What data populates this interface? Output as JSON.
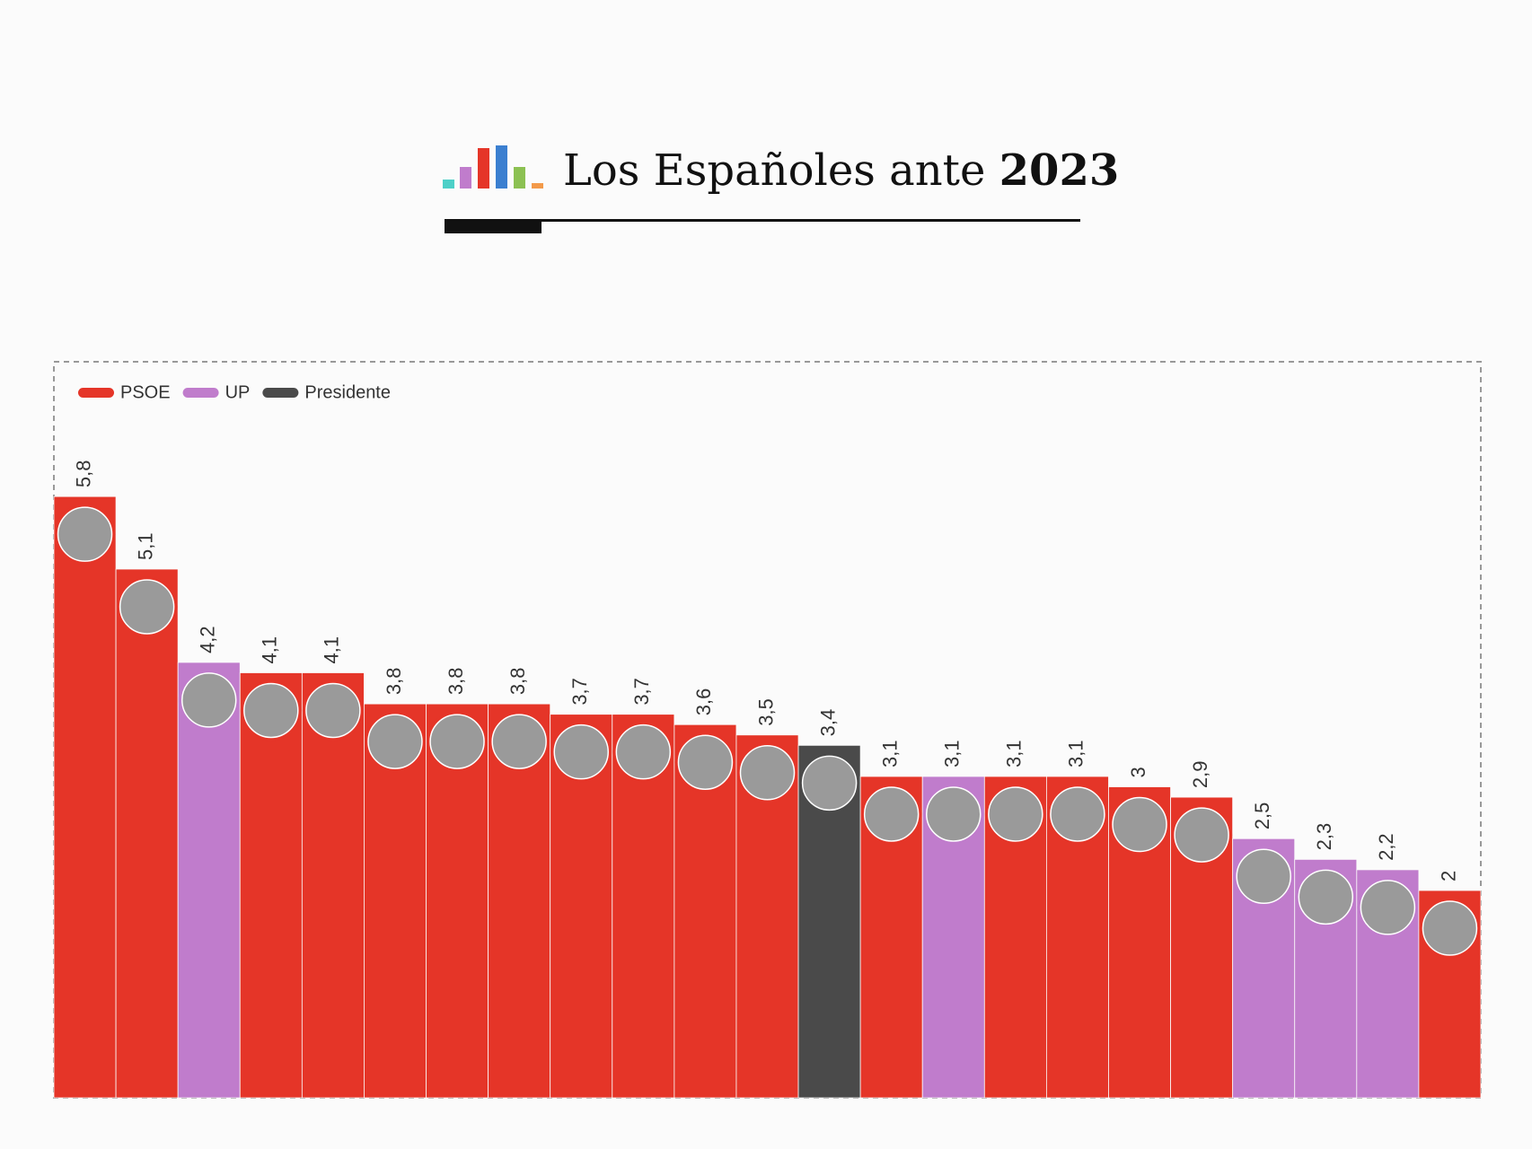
{
  "title": "Los Españoles ante",
  "title_emphasis": "2023",
  "chart_data": {
    "type": "bar",
    "legend": [
      {
        "name": "PSOE",
        "color": "#e53528"
      },
      {
        "name": "UP",
        "color": "#c07ccc"
      },
      {
        "name": "Presidente",
        "color": "#4a4a4a"
      }
    ],
    "values": [
      5.8,
      5.1,
      4.2,
      4.1,
      4.1,
      3.8,
      3.8,
      3.8,
      3.7,
      3.7,
      3.6,
      3.5,
      3.4,
      3.1,
      3.1,
      3.1,
      3.1,
      3,
      2.9,
      2.5,
      2.3,
      2.2,
      2
    ],
    "value_labels": [
      "5,8",
      "5,1",
      "4,2",
      "4,1",
      "4,1",
      "3,8",
      "3,8",
      "3,8",
      "3,7",
      "3,7",
      "3,6",
      "3,5",
      "3,4",
      "3,1",
      "3,1",
      "3,1",
      "3,1",
      "3",
      "2,9",
      "2,5",
      "2,3",
      "2,2",
      "2"
    ],
    "colors": [
      "#e53528",
      "#e53528",
      "#c07ccc",
      "#e53528",
      "#e53528",
      "#e53528",
      "#e53528",
      "#e53528",
      "#e53528",
      "#e53528",
      "#e53528",
      "#e53528",
      "#4a4a4a",
      "#e53528",
      "#c07ccc",
      "#e53528",
      "#e53528",
      "#e53528",
      "#e53528",
      "#c07ccc",
      "#c07ccc",
      "#c07ccc",
      "#e53528"
    ],
    "ylim": [
      0,
      7.1
    ]
  }
}
